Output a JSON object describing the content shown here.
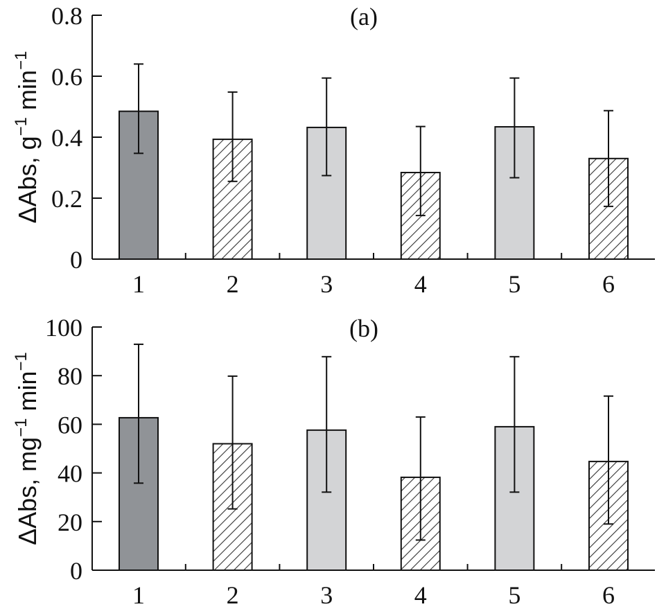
{
  "chart_data": [
    {
      "type": "bar",
      "panel_label": "(a)",
      "categories": [
        "1",
        "2",
        "3",
        "4",
        "5",
        "6"
      ],
      "values": [
        0.485,
        0.393,
        0.432,
        0.284,
        0.434,
        0.33
      ],
      "error_low": [
        0.347,
        0.255,
        0.274,
        0.143,
        0.267,
        0.173
      ],
      "error_high": [
        0.64,
        0.548,
        0.594,
        0.435,
        0.594,
        0.487
      ],
      "fills": [
        "dark",
        "hatch",
        "light",
        "hatch",
        "light",
        "hatch"
      ],
      "ylabel": {
        "main": "ΔAbs, g",
        "exp1": "−1",
        "mid": " min",
        "exp2": "−1"
      },
      "yticks": [
        "0",
        "0.2",
        "0.4",
        "0.6",
        "0.8"
      ],
      "ytick_values": [
        0,
        0.2,
        0.4,
        0.6,
        0.8
      ],
      "ylim": [
        0,
        0.8
      ],
      "xlabel": "",
      "grid": false
    },
    {
      "type": "bar",
      "panel_label": "(b)",
      "categories": [
        "1",
        "2",
        "3",
        "4",
        "5",
        "6"
      ],
      "values": [
        62.7,
        52.0,
        57.6,
        38.2,
        59.0,
        44.7
      ],
      "error_low": [
        35.8,
        25.2,
        32.1,
        12.4,
        32.1,
        19.0
      ],
      "error_high": [
        92.9,
        79.8,
        87.8,
        63.0,
        87.8,
        71.6
      ],
      "fills": [
        "dark",
        "hatch",
        "light",
        "hatch",
        "light",
        "hatch"
      ],
      "ylabel": {
        "main": "ΔAbs, mg",
        "exp1": "−1",
        "mid": " min",
        "exp2": "−1"
      },
      "yticks": [
        "0",
        "20",
        "40",
        "60",
        "80",
        "100"
      ],
      "ytick_values": [
        0,
        20,
        40,
        60,
        80,
        100
      ],
      "ylim": [
        0,
        100
      ],
      "xlabel": "",
      "grid": false
    }
  ],
  "colors": {
    "dark": "#909397",
    "light": "#d3d4d6",
    "hatch": "#333333",
    "axis": "#111111"
  }
}
